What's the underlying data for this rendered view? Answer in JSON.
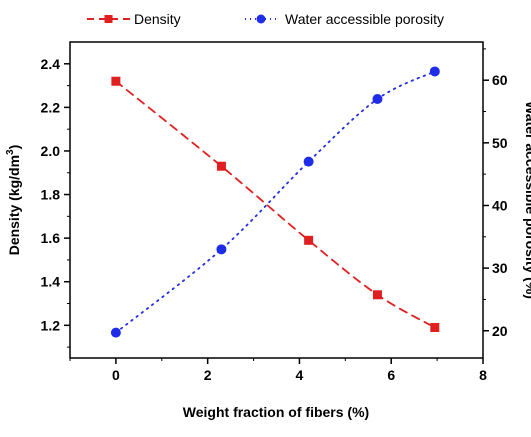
{
  "chart_data": {
    "type": "line",
    "xlabel": "Weight fraction of fibers (%)",
    "ylabel_left_main": "Density (kg/dm",
    "ylabel_left_sup": "3",
    "ylabel_left_end": ")",
    "ylabel_right": "Water accessible porosity (%)",
    "xlim": [
      -1,
      8
    ],
    "ylim_left": [
      1.05,
      2.5
    ],
    "ylim_right": [
      15.65,
      66.1
    ],
    "x_ticks": [
      0,
      2,
      4,
      6,
      8
    ],
    "y_left_ticks": [
      1.2,
      1.4,
      1.6,
      1.8,
      2.0,
      2.2,
      2.4
    ],
    "y_left_tick_labels": [
      "1.2",
      "1.4",
      "1.6",
      "1.8",
      "2.0",
      "2.2",
      "2.4"
    ],
    "y_right_ticks": [
      20,
      30,
      40,
      50,
      60
    ],
    "grid": false,
    "legend_position": "top",
    "series": [
      {
        "name": "Density",
        "axis": "left",
        "color": "#e02020",
        "line_style": "dashed",
        "marker": "square",
        "x": [
          0,
          2.3,
          4.2,
          5.7,
          6.95
        ],
        "y": [
          2.32,
          1.93,
          1.59,
          1.34,
          1.19
        ]
      },
      {
        "name": "Water accessible porosity",
        "axis": "right",
        "color": "#1f2de8",
        "line_style": "dotted",
        "marker": "circle",
        "x": [
          0,
          2.3,
          4.2,
          5.7,
          6.95
        ],
        "y": [
          19.7,
          33.0,
          47.0,
          57.0,
          61.4
        ]
      }
    ]
  }
}
